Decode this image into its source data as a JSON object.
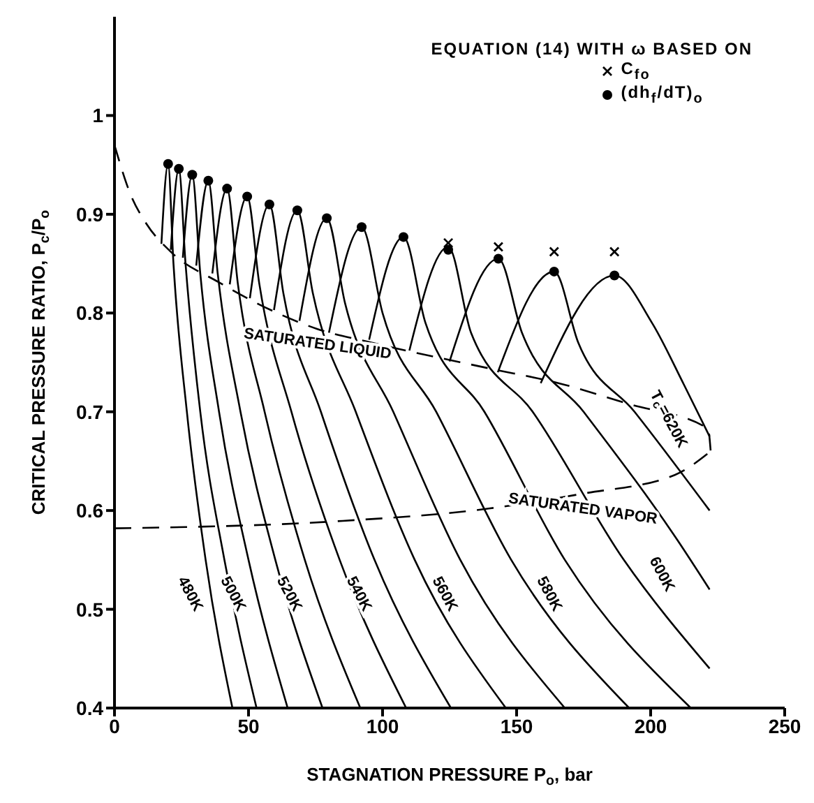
{
  "chart_data": {
    "type": "line",
    "xlabel": "STAGNATION PRESSURE P$_{o}$, bar",
    "ylabel": "CRITICAL PRESSURE RATIO, P$_{c}$/P$_{o}$",
    "legend_title": "EQUATION (14) WITH ω BASED ON",
    "legend": "top right",
    "xlim": [
      0,
      250
    ],
    "xticks": [
      0,
      50,
      100,
      150,
      200,
      250
    ],
    "ylim": [
      0.4,
      1.1
    ],
    "yticks": [
      0.4,
      0.5,
      0.6,
      0.7,
      0.8,
      0.9,
      1.0
    ],
    "grid": false,
    "series": [
      {
        "name": "480K",
        "color": "#000000",
        "x": [
          17.5,
          20,
          22,
          27,
          34,
          44
        ],
        "values": [
          0.87,
          0.951,
          0.85,
          0.7,
          0.55,
          0.4
        ]
      },
      {
        "color": "#000000",
        "x": [
          21,
          24,
          26.5,
          32,
          41,
          53
        ],
        "values": [
          0.864,
          0.946,
          0.85,
          0.7,
          0.55,
          0.4
        ]
      },
      {
        "name": "500K",
        "color": "#000000",
        "x": [
          25.5,
          29,
          32,
          39,
          50,
          64.6
        ],
        "values": [
          0.856,
          0.94,
          0.84,
          0.7,
          0.55,
          0.4
        ]
      },
      {
        "color": "#000000",
        "x": [
          30.5,
          35,
          38.5,
          47,
          60,
          77.6
        ],
        "values": [
          0.848,
          0.934,
          0.84,
          0.7,
          0.55,
          0.4
        ]
      },
      {
        "name": "520K",
        "color": "#000000",
        "x": [
          36.5,
          42,
          46,
          56,
          71,
          91.7
        ],
        "values": [
          0.84,
          0.926,
          0.83,
          0.7,
          0.55,
          0.4
        ]
      },
      {
        "color": "#000000",
        "x": [
          43,
          49.5,
          54,
          66,
          84,
          108.8
        ],
        "values": [
          0.829,
          0.918,
          0.83,
          0.7,
          0.55,
          0.4
        ]
      },
      {
        "name": "540K",
        "color": "#000000",
        "x": [
          50.5,
          57.8,
          63,
          77,
          97,
          125.5
        ],
        "values": [
          0.815,
          0.91,
          0.82,
          0.7,
          0.55,
          0.4
        ]
      },
      {
        "color": "#000000",
        "x": [
          59.5,
          68.2,
          74,
          90,
          112,
          146
        ],
        "values": [
          0.803,
          0.904,
          0.82,
          0.7,
          0.55,
          0.4
        ]
      },
      {
        "name": "560K",
        "color": "#000000",
        "x": [
          69,
          79.2,
          86,
          104,
          129,
          168
        ],
        "values": [
          0.792,
          0.896,
          0.81,
          0.7,
          0.55,
          0.4
        ]
      },
      {
        "color": "#000000",
        "x": [
          80,
          92.2,
          100,
          120,
          148,
          192
        ],
        "values": [
          0.78,
          0.887,
          0.8,
          0.7,
          0.55,
          0.4
        ]
      },
      {
        "name": "580K",
        "color": "#000000",
        "x": [
          95,
          107.8,
          116,
          138,
          168,
          215
        ],
        "values": [
          0.773,
          0.877,
          0.79,
          0.7,
          0.55,
          0.4
        ]
      },
      {
        "color": "#000000",
        "x": [
          110,
          124.5,
          133,
          156,
          190,
          222
        ],
        "values": [
          0.762,
          0.867,
          0.78,
          0.7,
          0.55,
          0.44
        ]
      },
      {
        "name": "600K",
        "color": "#000000",
        "x": [
          125,
          143.2,
          152,
          175,
          210,
          222
        ],
        "values": [
          0.751,
          0.855,
          0.78,
          0.7,
          0.57,
          0.52
        ]
      },
      {
        "color": "#000000",
        "x": [
          143,
          164,
          173,
          194,
          222
        ],
        "values": [
          0.74,
          0.842,
          0.77,
          0.7,
          0.6
        ]
      },
      {
        "name": "T$_{o}$=620K",
        "color": "#000000",
        "x": [
          159,
          186.5,
          200.5,
          212.5,
          222
        ],
        "values": [
          0.729,
          0.838,
          0.79,
          0.727,
          0.675
        ]
      },
      {
        "name": "SATURATED LIQUID",
        "color": "#000000",
        "line_style": "dashed",
        "x": [
          0,
          6,
          12,
          21,
          39,
          56,
          75.5,
          96,
          139.6,
          165.6,
          191.7,
          221.4,
          222.4
        ],
        "values": [
          0.97,
          0.92,
          0.89,
          0.862,
          0.831,
          0.806,
          0.784,
          0.77,
          0.744,
          0.729,
          0.708,
          0.683,
          0.66
        ]
      },
      {
        "name": "SATURATED VAPOR",
        "color": "#000000",
        "line_style": "dashed",
        "x": [
          0,
          82,
          139.6,
          174.5,
          209,
          222.4
        ],
        "values": [
          0.582,
          0.589,
          0.602,
          0.617,
          0.636,
          0.66
        ]
      },
      {
        "type": "scatter",
        "name": "C$_{fo}$",
        "color": "#000000",
        "marker": "cross",
        "x": [
          124.5,
          143.2,
          164,
          186.5
        ],
        "values": [
          0.871,
          0.867,
          0.862,
          0.862
        ]
      },
      {
        "type": "scatter",
        "name": "(dh$_{f}$/dT)$_{o}$",
        "color": "#000000",
        "marker": "circle",
        "x": [
          20,
          24,
          29,
          35,
          42,
          49.5,
          57.8,
          68.2,
          79.2,
          92.2,
          107.8,
          124.5,
          143.2,
          164,
          186.5
        ],
        "values": [
          0.951,
          0.946,
          0.94,
          0.934,
          0.926,
          0.918,
          0.91,
          0.904,
          0.896,
          0.887,
          0.877,
          0.864,
          0.855,
          0.842,
          0.838
        ]
      }
    ]
  }
}
